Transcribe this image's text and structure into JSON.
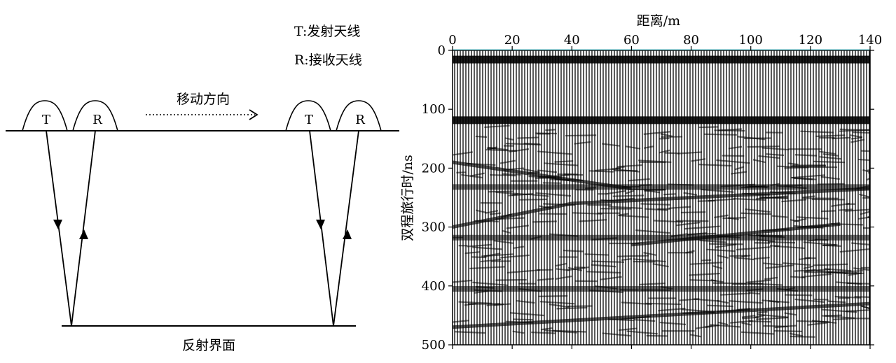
{
  "legend": {
    "transmitter": "T:发射天线",
    "receiver": "R:接收天线"
  },
  "diagram": {
    "antenna_t": "T",
    "antenna_r": "R",
    "direction_label": "移动方向",
    "interface_label": "反射界面"
  },
  "radargram": {
    "x_axis_label": "距离/m",
    "y_axis_label": "双程旅行时/ns",
    "x_ticks": [
      "0",
      "20",
      "40",
      "60",
      "80",
      "100",
      "120",
      "140"
    ],
    "y_ticks": [
      "0",
      "100",
      "200",
      "300",
      "400",
      "500"
    ],
    "x_range": [
      0,
      140
    ],
    "y_range": [
      0,
      500
    ],
    "reflectors": [
      {
        "kind": "horizontal-band",
        "t": 15
      },
      {
        "kind": "horizontal-band",
        "t": 118
      },
      {
        "kind": "horizontal",
        "t": 232
      },
      {
        "kind": "horizontal",
        "t": 318
      },
      {
        "kind": "horizontal",
        "t": 405
      },
      {
        "kind": "dipping",
        "x0": 0,
        "t0": 190,
        "x1": 60,
        "t1": 235
      },
      {
        "kind": "dipping",
        "x0": 0,
        "t0": 300,
        "x1": 40,
        "t1": 260
      },
      {
        "kind": "dipping",
        "x0": 40,
        "t0": 260,
        "x1": 140,
        "t1": 235
      },
      {
        "kind": "dipping",
        "x0": 60,
        "t0": 330,
        "x1": 130,
        "t1": 295
      },
      {
        "kind": "dipping",
        "x0": 0,
        "t0": 470,
        "x1": 140,
        "t1": 430
      }
    ],
    "colors": {
      "trace": "#000000",
      "baseline_tick": "#7ec8d0"
    }
  }
}
